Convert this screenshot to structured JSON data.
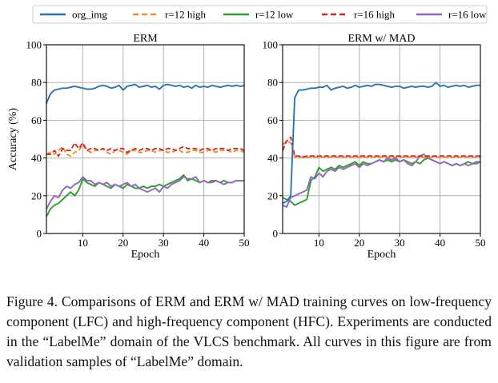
{
  "chart_data": {
    "type": "line",
    "legend": {
      "position": "top",
      "entries": [
        {
          "key": "org_img",
          "label": "org_img",
          "color": "#2a74b4",
          "dash": "solid"
        },
        {
          "key": "r12high",
          "label": "r=12 high",
          "color": "#f28e2b",
          "dash": "dashed"
        },
        {
          "key": "r12low",
          "label": "r=12 low",
          "color": "#2ca02c",
          "dash": "solid"
        },
        {
          "key": "r16high",
          "label": "r=16 high",
          "color": "#d62728",
          "dash": "dashed"
        },
        {
          "key": "r16low",
          "label": "r=16 low",
          "color": "#9467bd",
          "dash": "solid"
        }
      ]
    },
    "panels": [
      {
        "title": "ERM",
        "xlabel": "Epoch",
        "ylabel": "Accuracy (%)",
        "xlim": [
          1,
          50
        ],
        "ylim": [
          0,
          100
        ],
        "xticks": [
          10,
          20,
          30,
          40,
          50
        ],
        "yticks": [
          0,
          20,
          40,
          60,
          80,
          100
        ],
        "grid": true,
        "x": [
          1,
          2,
          3,
          4,
          5,
          6,
          7,
          8,
          9,
          10,
          11,
          12,
          13,
          14,
          15,
          16,
          17,
          18,
          19,
          20,
          21,
          22,
          23,
          24,
          25,
          26,
          27,
          28,
          29,
          30,
          31,
          32,
          33,
          34,
          35,
          36,
          37,
          38,
          39,
          40,
          41,
          42,
          43,
          44,
          45,
          46,
          47,
          48,
          49,
          50
        ],
        "series": [
          {
            "key": "org_img",
            "values": [
              69,
              74,
              76,
              76.5,
              77,
              77,
              77.5,
              78,
              77.5,
              77,
              76.5,
              76.5,
              77,
              78,
              78.5,
              78,
              77,
              77.5,
              78.5,
              76,
              78,
              78.5,
              79,
              77.5,
              78,
              78.5,
              77.5,
              78,
              76.5,
              78.5,
              79,
              78.5,
              78,
              78.5,
              77.5,
              78,
              77,
              78.5,
              77.5,
              78,
              77.5,
              78.5,
              78,
              77.5,
              78,
              78.5,
              78,
              78.5,
              78,
              78.3
            ]
          },
          {
            "key": "r12high",
            "values": [
              42,
              43,
              42,
              44,
              46,
              42,
              41,
              43,
              44,
              47,
              44,
              43,
              44,
              44,
              45,
              43,
              42,
              44,
              44,
              43,
              42,
              44,
              44,
              43,
              43,
              44,
              44,
              43,
              44,
              44,
              43,
              43,
              44,
              44,
              43,
              43,
              44,
              44,
              43,
              43,
              44,
              44,
              43,
              44,
              44,
              44,
              43,
              44,
              44,
              43
            ]
          },
          {
            "key": "r12low",
            "values": [
              9,
              13,
              15,
              16,
              18,
              20,
              22,
              20,
              23,
              29,
              27,
              26,
              25,
              27,
              26,
              25,
              24,
              26,
              25,
              24,
              26,
              25,
              24,
              24,
              25,
              24,
              25,
              25,
              26,
              25,
              26,
              27,
              28,
              29,
              31,
              28,
              29,
              28,
              27,
              28,
              27,
              28,
              28,
              27,
              28,
              27,
              27,
              28,
              28,
              28
            ]
          },
          {
            "key": "r16high",
            "values": [
              42,
              42,
              44,
              41,
              45,
              44,
              44,
              48,
              45,
              48,
              44,
              45,
              45,
              44,
              45,
              44,
              45,
              44,
              45,
              45,
              43,
              44,
              45,
              44,
              45,
              45,
              44,
              45,
              45,
              44,
              45,
              45,
              44,
              45,
              46,
              45,
              45,
              45,
              44,
              45,
              45,
              44,
              45,
              45,
              45,
              44,
              45,
              45,
              45,
              44
            ]
          },
          {
            "key": "r16low",
            "values": [
              13,
              17,
              20,
              19,
              23,
              25,
              24,
              26,
              27,
              30,
              28,
              28,
              26,
              27,
              26,
              27,
              25,
              26,
              25,
              26,
              27,
              25,
              26,
              24,
              23,
              22,
              23,
              24,
              22,
              25,
              24,
              26,
              27,
              28,
              30,
              29,
              29,
              30,
              27,
              28,
              27,
              27,
              28,
              27,
              26,
              27,
              27,
              28,
              28,
              28
            ]
          }
        ]
      },
      {
        "title": "ERM w/ MAD",
        "xlabel": "Epoch",
        "ylabel": "",
        "xlim": [
          1,
          50
        ],
        "ylim": [
          0,
          100
        ],
        "xticks": [
          10,
          20,
          30,
          40,
          50
        ],
        "yticks": [
          0,
          20,
          40,
          60,
          80,
          100
        ],
        "grid": true,
        "x": [
          1,
          2,
          3,
          4,
          5,
          6,
          7,
          8,
          9,
          10,
          11,
          12,
          13,
          14,
          15,
          16,
          17,
          18,
          19,
          20,
          21,
          22,
          23,
          24,
          25,
          26,
          27,
          28,
          29,
          30,
          31,
          32,
          33,
          34,
          35,
          36,
          37,
          38,
          39,
          40,
          41,
          42,
          43,
          44,
          45,
          46,
          47,
          48,
          49,
          50
        ],
        "series": [
          {
            "key": "org_img",
            "values": [
              16,
              17,
              20,
              72,
              76,
              76,
              76.5,
              77,
              77,
              77.5,
              77.5,
              78.5,
              76,
              77,
              77.5,
              78,
              77,
              77.5,
              78.5,
              77.5,
              78,
              78.5,
              78,
              79,
              79,
              78.5,
              78,
              77.5,
              78,
              78,
              77,
              77.5,
              78,
              77.5,
              78,
              78,
              77.5,
              78,
              80,
              78,
              78.5,
              77.5,
              78,
              78.5,
              78,
              78.5,
              77.5,
              78,
              78.5,
              78.5
            ]
          },
          {
            "key": "r12high",
            "values": [
              47,
              49,
              48,
              40.5,
              40.5,
              40.5,
              40.5,
              40.5,
              40.5,
              40.5,
              40.5,
              40.5,
              40.5,
              40.5,
              40.5,
              40.5,
              40.5,
              40.5,
              40.5,
              40.5,
              40.5,
              40.5,
              40.5,
              40.5,
              40.5,
              40.5,
              40.5,
              40.5,
              40.5,
              40.5,
              40.5,
              40.5,
              40.5,
              40.5,
              40.5,
              40.5,
              40.5,
              40.5,
              40.5,
              40.5,
              40.5,
              40.5,
              40.5,
              40.5,
              40.5,
              40.5,
              40.5,
              40.5,
              40.5,
              40.5
            ]
          },
          {
            "key": "r12low",
            "values": [
              19,
              18,
              17,
              15,
              16,
              17,
              18,
              28,
              30,
              35,
              33,
              34,
              35,
              34,
              36,
              35,
              36,
              37,
              38,
              36,
              38,
              37,
              37,
              38,
              39,
              38,
              39,
              38,
              39,
              38,
              39,
              38,
              37,
              38,
              37,
              39,
              40,
              39,
              38,
              37,
              38,
              37,
              36,
              37,
              36,
              37,
              38,
              37,
              37,
              38
            ]
          },
          {
            "key": "r16high",
            "values": [
              44,
              49,
              51,
              41,
              41,
              40.5,
              41,
              41,
              41,
              41,
              41,
              41,
              41,
              41,
              41,
              41,
              41,
              41,
              41,
              41,
              41,
              41,
              41,
              41,
              41,
              41,
              41,
              41,
              41,
              41,
              41,
              41,
              41,
              41,
              41,
              41,
              41,
              41,
              41,
              41,
              41,
              41,
              41,
              41,
              41,
              41,
              41,
              41,
              41,
              41
            ]
          },
          {
            "key": "r16low",
            "values": [
              15,
              14,
              19,
              20,
              21,
              22,
              23,
              30,
              29,
              32,
              30,
              33,
              34,
              33,
              35,
              34,
              35,
              36,
              37,
              35,
              37,
              36,
              37,
              38,
              39,
              38,
              40,
              39,
              40,
              38,
              39,
              37,
              36,
              38,
              41,
              42,
              40,
              39,
              38,
              37,
              38,
              37,
              36,
              37,
              36,
              37,
              36,
              37,
              38,
              38
            ]
          }
        ]
      }
    ]
  },
  "caption": "Figure 4. Comparisons of ERM and ERM w/ MAD training curves on low-frequency component (LFC) and high-frequency component (HFC). Experiments are conducted in the “LabelMe” domain of the VLCS benchmark. All curves in this figure are from validation samples of “LabelMe” domain."
}
